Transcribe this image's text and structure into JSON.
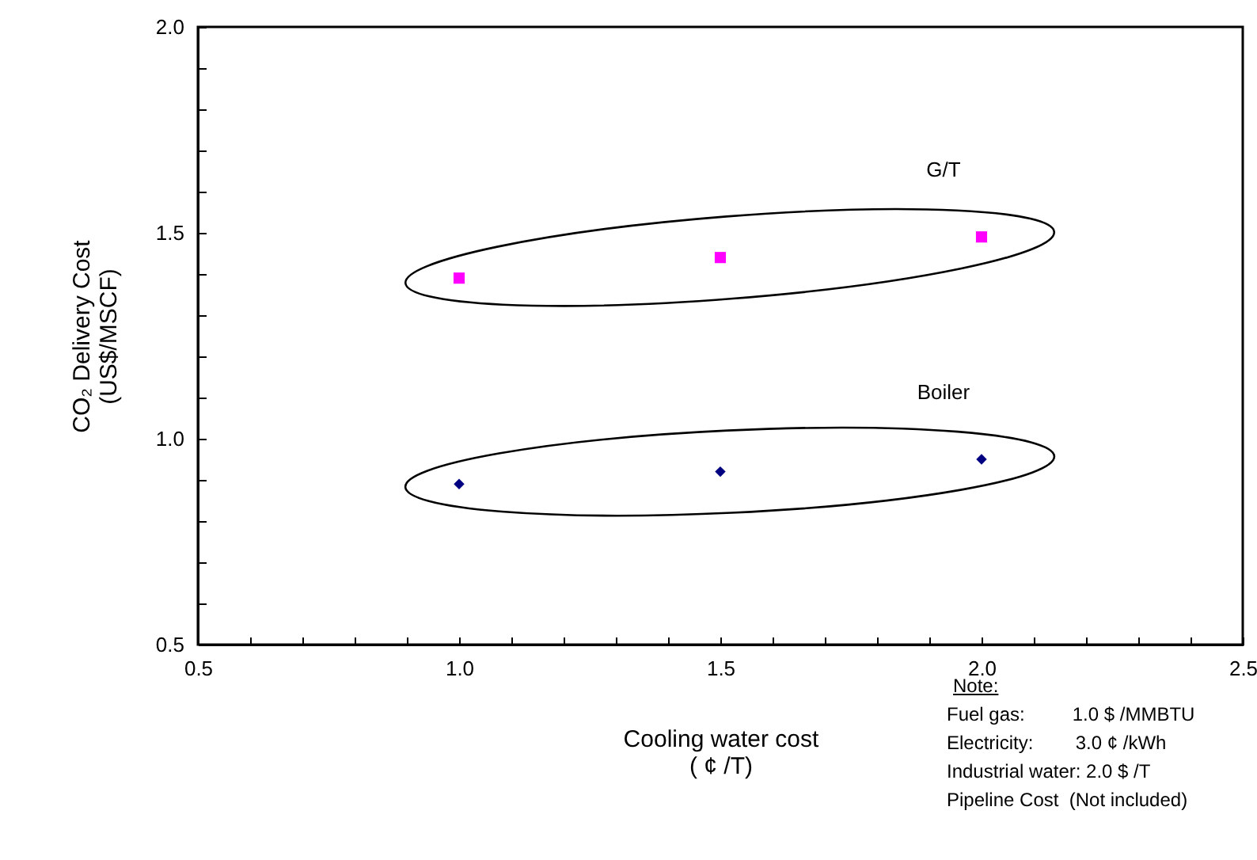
{
  "chart_data": {
    "type": "scatter",
    "xlabel": "Cooling water cost\n( ¢ /T)",
    "ylabel": "CO₂ Delivery Cost\n(US$/MSCF)",
    "x": [
      1.0,
      1.5,
      2.0
    ],
    "series": [
      {
        "name": "G/T",
        "color": "#ff00ff",
        "marker": "square",
        "values": [
          1.39,
          1.44,
          1.49
        ]
      },
      {
        "name": "Boiler",
        "color": "#000080",
        "marker": "diamond",
        "values": [
          0.89,
          0.92,
          0.95
        ]
      }
    ],
    "xlim": [
      0.5,
      2.5
    ],
    "ylim": [
      0.5,
      2.0
    ],
    "xticks": [
      {
        "value": 0.5,
        "label": "0.5"
      },
      {
        "value": 0.6,
        "label": null
      },
      {
        "value": 0.7,
        "label": null
      },
      {
        "value": 0.8,
        "label": null
      },
      {
        "value": 0.9,
        "label": null
      },
      {
        "value": 1.0,
        "label": "1.0"
      },
      {
        "value": 1.1,
        "label": null
      },
      {
        "value": 1.2,
        "label": null
      },
      {
        "value": 1.3,
        "label": null
      },
      {
        "value": 1.4,
        "label": null
      },
      {
        "value": 1.5,
        "label": "1.5"
      },
      {
        "value": 1.6,
        "label": null
      },
      {
        "value": 1.7,
        "label": null
      },
      {
        "value": 1.8,
        "label": null
      },
      {
        "value": 1.9,
        "label": null
      },
      {
        "value": 2.0,
        "label": "2.0"
      },
      {
        "value": 2.1,
        "label": null
      },
      {
        "value": 2.2,
        "label": null
      },
      {
        "value": 2.3,
        "label": null
      },
      {
        "value": 2.4,
        "label": null
      },
      {
        "value": 2.5,
        "label": "2.5"
      }
    ],
    "yticks": [
      {
        "value": 0.5,
        "label": "0.5"
      },
      {
        "value": 0.6,
        "label": null
      },
      {
        "value": 0.7,
        "label": null
      },
      {
        "value": 0.8,
        "label": null
      },
      {
        "value": 0.9,
        "label": null
      },
      {
        "value": 1.0,
        "label": "1.0"
      },
      {
        "value": 1.1,
        "label": null
      },
      {
        "value": 1.2,
        "label": null
      },
      {
        "value": 1.3,
        "label": null
      },
      {
        "value": 1.4,
        "label": null
      },
      {
        "value": 1.5,
        "label": "1.5"
      },
      {
        "value": 1.6,
        "label": null
      },
      {
        "value": 1.7,
        "label": null
      },
      {
        "value": 1.8,
        "label": null
      },
      {
        "value": 1.9,
        "label": null
      },
      {
        "value": 2.0,
        "label": "2.0"
      }
    ],
    "grid": false,
    "annotations": [
      "Note:",
      "Fuel gas:         1.0 $ /MMBTU",
      "Electricity:        3.0 ¢ /kWh",
      "Industrial water: 2.0 $ /T",
      "Pipeline Cost  (Not included)"
    ]
  }
}
